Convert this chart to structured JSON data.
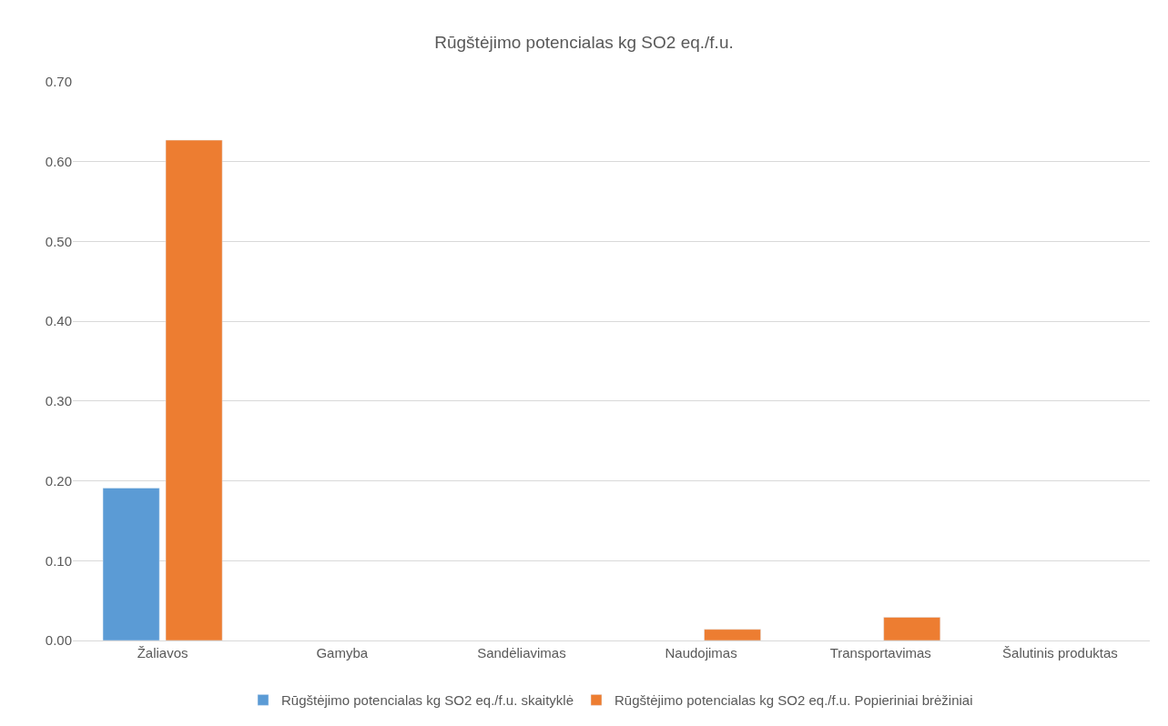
{
  "chart_data": {
    "type": "bar",
    "title": "Rūgštėjimo potencialas kg SO2 eq./f.u.",
    "categories": [
      "Žaliavos",
      "Gamyba",
      "Sandėliavimas",
      "Naudojimas",
      "Transportavimas",
      "Šalutinis produktas"
    ],
    "series": [
      {
        "name": "Rūgštėjimo potencialas kg SO2 eq./f.u. skaityklė",
        "color": "#5b9bd5",
        "values": [
          0.191,
          null,
          null,
          null,
          null,
          null
        ]
      },
      {
        "name": "Rūgštėjimo potencialas kg SO2 eq./f.u. Popieriniai brėžiniai",
        "color": "#ed7d31",
        "values": [
          0.627,
          null,
          null,
          0.014,
          0.029,
          null
        ]
      }
    ],
    "ylim": [
      0,
      0.7
    ],
    "yticks": [
      {
        "value": 0,
        "label": "0.00"
      },
      {
        "value": 0.1,
        "label": "0.10"
      },
      {
        "value": 0.2,
        "label": "0.20"
      },
      {
        "value": 0.3,
        "label": "0.30"
      },
      {
        "value": 0.4,
        "label": "0.40"
      },
      {
        "value": 0.5,
        "label": "0.50"
      },
      {
        "value": 0.6,
        "label": "0.60"
      },
      {
        "value": 0.7,
        "label": "0.70"
      }
    ],
    "grid": "y",
    "legend": "bottom"
  }
}
